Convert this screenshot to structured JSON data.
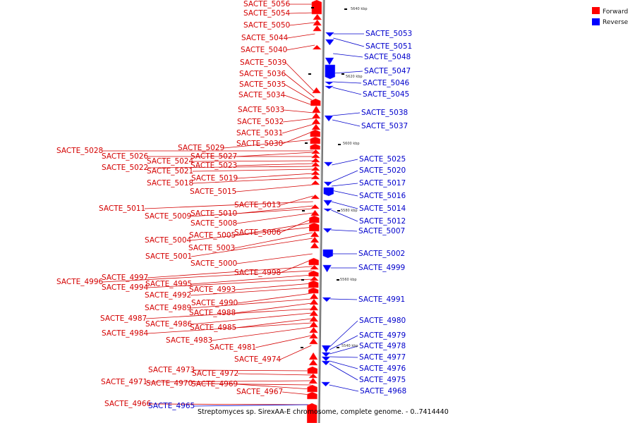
{
  "caption": "Streptomyces sp. SirexAA-E chromosome, complete genome. - 0..7414440",
  "legend": [
    {
      "label": "Forward",
      "color": "#ff0000"
    },
    {
      "label": "Reverse",
      "color": "#0000ff"
    }
  ],
  "scale_labels": [
    "5640 kbp",
    "5620 kbp",
    "5600 kbp",
    "5580 kbp",
    "5560 kbp",
    "5540 kbp"
  ],
  "forward_genes": [
    "SACTE_5056",
    "SACTE_5054",
    "SACTE_5050",
    "SACTE_5044",
    "SACTE_5040",
    "SACTE_5039",
    "SACTE_5036",
    "SACTE_5035",
    "SACTE_5034",
    "SACTE_5033",
    "SACTE_5032",
    "SACTE_5031",
    "SACTE_5030",
    "SACTE_5029",
    "SACTE_5028",
    "SACTE_5027",
    "SACTE_5026",
    "SACTE_5024",
    "SACTE_5023",
    "SACTE_5022",
    "SACTE_5021",
    "SACTE_5019",
    "SACTE_5018",
    "SACTE_5015",
    "SACTE_5013",
    "SACTE_5011",
    "SACTE_5010",
    "SACTE_5009",
    "SACTE_5008",
    "SACTE_5006",
    "SACTE_5005",
    "SACTE_5004",
    "SACTE_5003",
    "SACTE_5001",
    "SACTE_5000",
    "SACTE_4998",
    "SACTE_4997",
    "SACTE_4996",
    "SACTE_4995",
    "SACTE_4994",
    "SACTE_4993",
    "SACTE_4992",
    "SACTE_4990",
    "SACTE_4989",
    "SACTE_4988",
    "SACTE_4987",
    "SACTE_4986",
    "SACTE_4985",
    "SACTE_4984",
    "SACTE_4983",
    "SACTE_4981",
    "SACTE_4974",
    "SACTE_4973",
    "SACTE_4972",
    "SACTE_4971",
    "SACTE_4970",
    "SACTE_4969",
    "SACTE_4967",
    "SACTE_4966"
  ],
  "reverse_genes": [
    "SACTE_5053",
    "SACTE_5051",
    "SACTE_5048",
    "SACTE_5047",
    "SACTE_5046",
    "SACTE_5045",
    "SACTE_5038",
    "SACTE_5037",
    "SACTE_5025",
    "SACTE_5020",
    "SACTE_5017",
    "SACTE_5016",
    "SACTE_5014",
    "SACTE_5012",
    "SACTE_5007",
    "SACTE_5002",
    "SACTE_4999",
    "SACTE_4991",
    "SACTE_4980",
    "SACTE_4979",
    "SACTE_4978",
    "SACTE_4977",
    "SACTE_4976",
    "SACTE_4975",
    "SACTE_4968",
    "SACTE_4965"
  ]
}
